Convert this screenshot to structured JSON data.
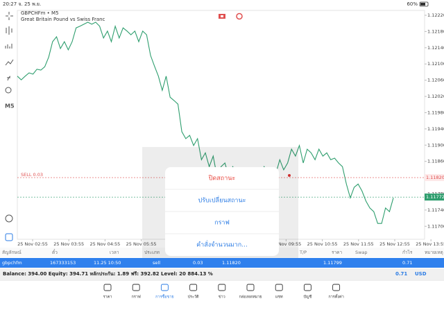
{
  "status_bar": {
    "time": "20:27 จ. 25 พ.ย.",
    "battery": "60%"
  },
  "toolbar": {
    "timeframe": "M5"
  },
  "chart_data": {
    "type": "line",
    "title": "GBPCHFm • M5",
    "subtitle": "Great Britain Pound vs Swiss Franc",
    "color": "#2e9e6e",
    "values": [
      1.1207,
      1.12061,
      1.1207,
      1.12078,
      1.12075,
      1.12087,
      1.12085,
      1.12093,
      1.12117,
      1.12155,
      1.12167,
      1.12138,
      1.12155,
      1.12135,
      1.12155,
      1.12189,
      1.12193,
      1.12198,
      1.12203,
      1.12198,
      1.12203,
      1.12193,
      1.12164,
      1.12181,
      1.12155,
      1.12193,
      1.12164,
      1.12189,
      1.12181,
      1.12172,
      1.12181,
      1.12155,
      1.12181,
      1.12172,
      1.12121,
      1.12095,
      1.1207,
      1.12035,
      1.1207,
      1.12018,
      1.1201,
      1.12001,
      1.11933,
      1.11916,
      1.11924,
      1.11899,
      1.11916,
      1.11864,
      1.11881,
      1.11847,
      1.11873,
      1.11822,
      1.11847,
      1.11856,
      1.11822,
      1.11847,
      1.1183,
      1.11813,
      1.11822,
      1.1181,
      1.1183,
      1.11804,
      1.11816,
      1.11847,
      1.1183,
      1.11799,
      1.1183,
      1.11864,
      1.11839,
      1.11856,
      1.1189,
      1.11873,
      1.11899,
      1.11856,
      1.1189,
      1.11881,
      1.11864,
      1.1189,
      1.11873,
      1.11881,
      1.11864,
      1.11868,
      1.11856,
      1.11847,
      1.11804,
      1.1177,
      1.11796,
      1.11804,
      1.11787,
      1.11762,
      1.11745,
      1.11736,
      1.11707,
      1.11707,
      1.11745,
      1.11736,
      1.1177
    ],
    "ylim": [
      1.11668,
      1.12232
    ],
    "yticks": [
      {
        "value": 1.1222,
        "label": "1.12220"
      },
      {
        "value": 1.1218,
        "label": "1.12180"
      },
      {
        "value": 1.1214,
        "label": "1.12140"
      },
      {
        "value": 1.121,
        "label": "1.12100"
      },
      {
        "value": 1.1206,
        "label": "1.12060"
      },
      {
        "value": 1.1202,
        "label": "1.12020"
      },
      {
        "value": 1.1198,
        "label": "1.11980"
      },
      {
        "value": 1.1194,
        "label": "1.11940"
      },
      {
        "value": 1.119,
        "label": "1.11900"
      },
      {
        "value": 1.1186,
        "label": "1.11860"
      },
      {
        "value": 1.1182,
        "label": "1.11820"
      },
      {
        "value": 1.1178,
        "label": "1.11780"
      },
      {
        "value": 1.1174,
        "label": "1.11740"
      },
      {
        "value": 1.117,
        "label": "1.11700"
      }
    ],
    "x_labels": [
      "25 Nov 02:55",
      "25 Nov 03:55",
      "25 Nov 04:55",
      "25 Nov 05:55",
      "25 Nov 09:55",
      "25 Nov 10:55",
      "25 Nov 11:55",
      "25 Nov 12:55",
      "25 Nov 13:55"
    ],
    "sell_line": {
      "label": "SELL 0.03",
      "value": 1.1182,
      "value_label": "1.11820"
    },
    "price_line": {
      "value": 1.11772,
      "value_label": "1.11772"
    },
    "grid": false
  },
  "popup": {
    "items": [
      "ปิดสถานะ",
      "ปรับเปลี่ยนสถานะ",
      "กราฟ",
      "คำสั่งจำนวนมาก..."
    ]
  },
  "table": {
    "header": [
      "สัญลักษณ์",
      "ตั๋ว",
      "เวลา",
      "ประเภท",
      "T/P",
      "ราคา",
      "Swap",
      "กำไร",
      "หมายเหตุ"
    ],
    "row": [
      "gbpchfm",
      "167333153",
      "11.25 10:50",
      "sell",
      "0.03",
      "1.11820",
      "1.11799",
      "0.71"
    ]
  },
  "balance": {
    "text": "Balance: 394.00 Equity: 394.71 หลักประกัน: 1.89 ฟรี: 392.82 Level: 20 884.13 %",
    "profit": "0.71",
    "currency": "USD"
  },
  "tabs": [
    "ราคา",
    "กราฟ",
    "การซื้อขาย",
    "ประวัติ",
    "ข่าว",
    "กล่องจดหมาย",
    "แชท",
    "บัญชี",
    "การตั้งค่า"
  ]
}
